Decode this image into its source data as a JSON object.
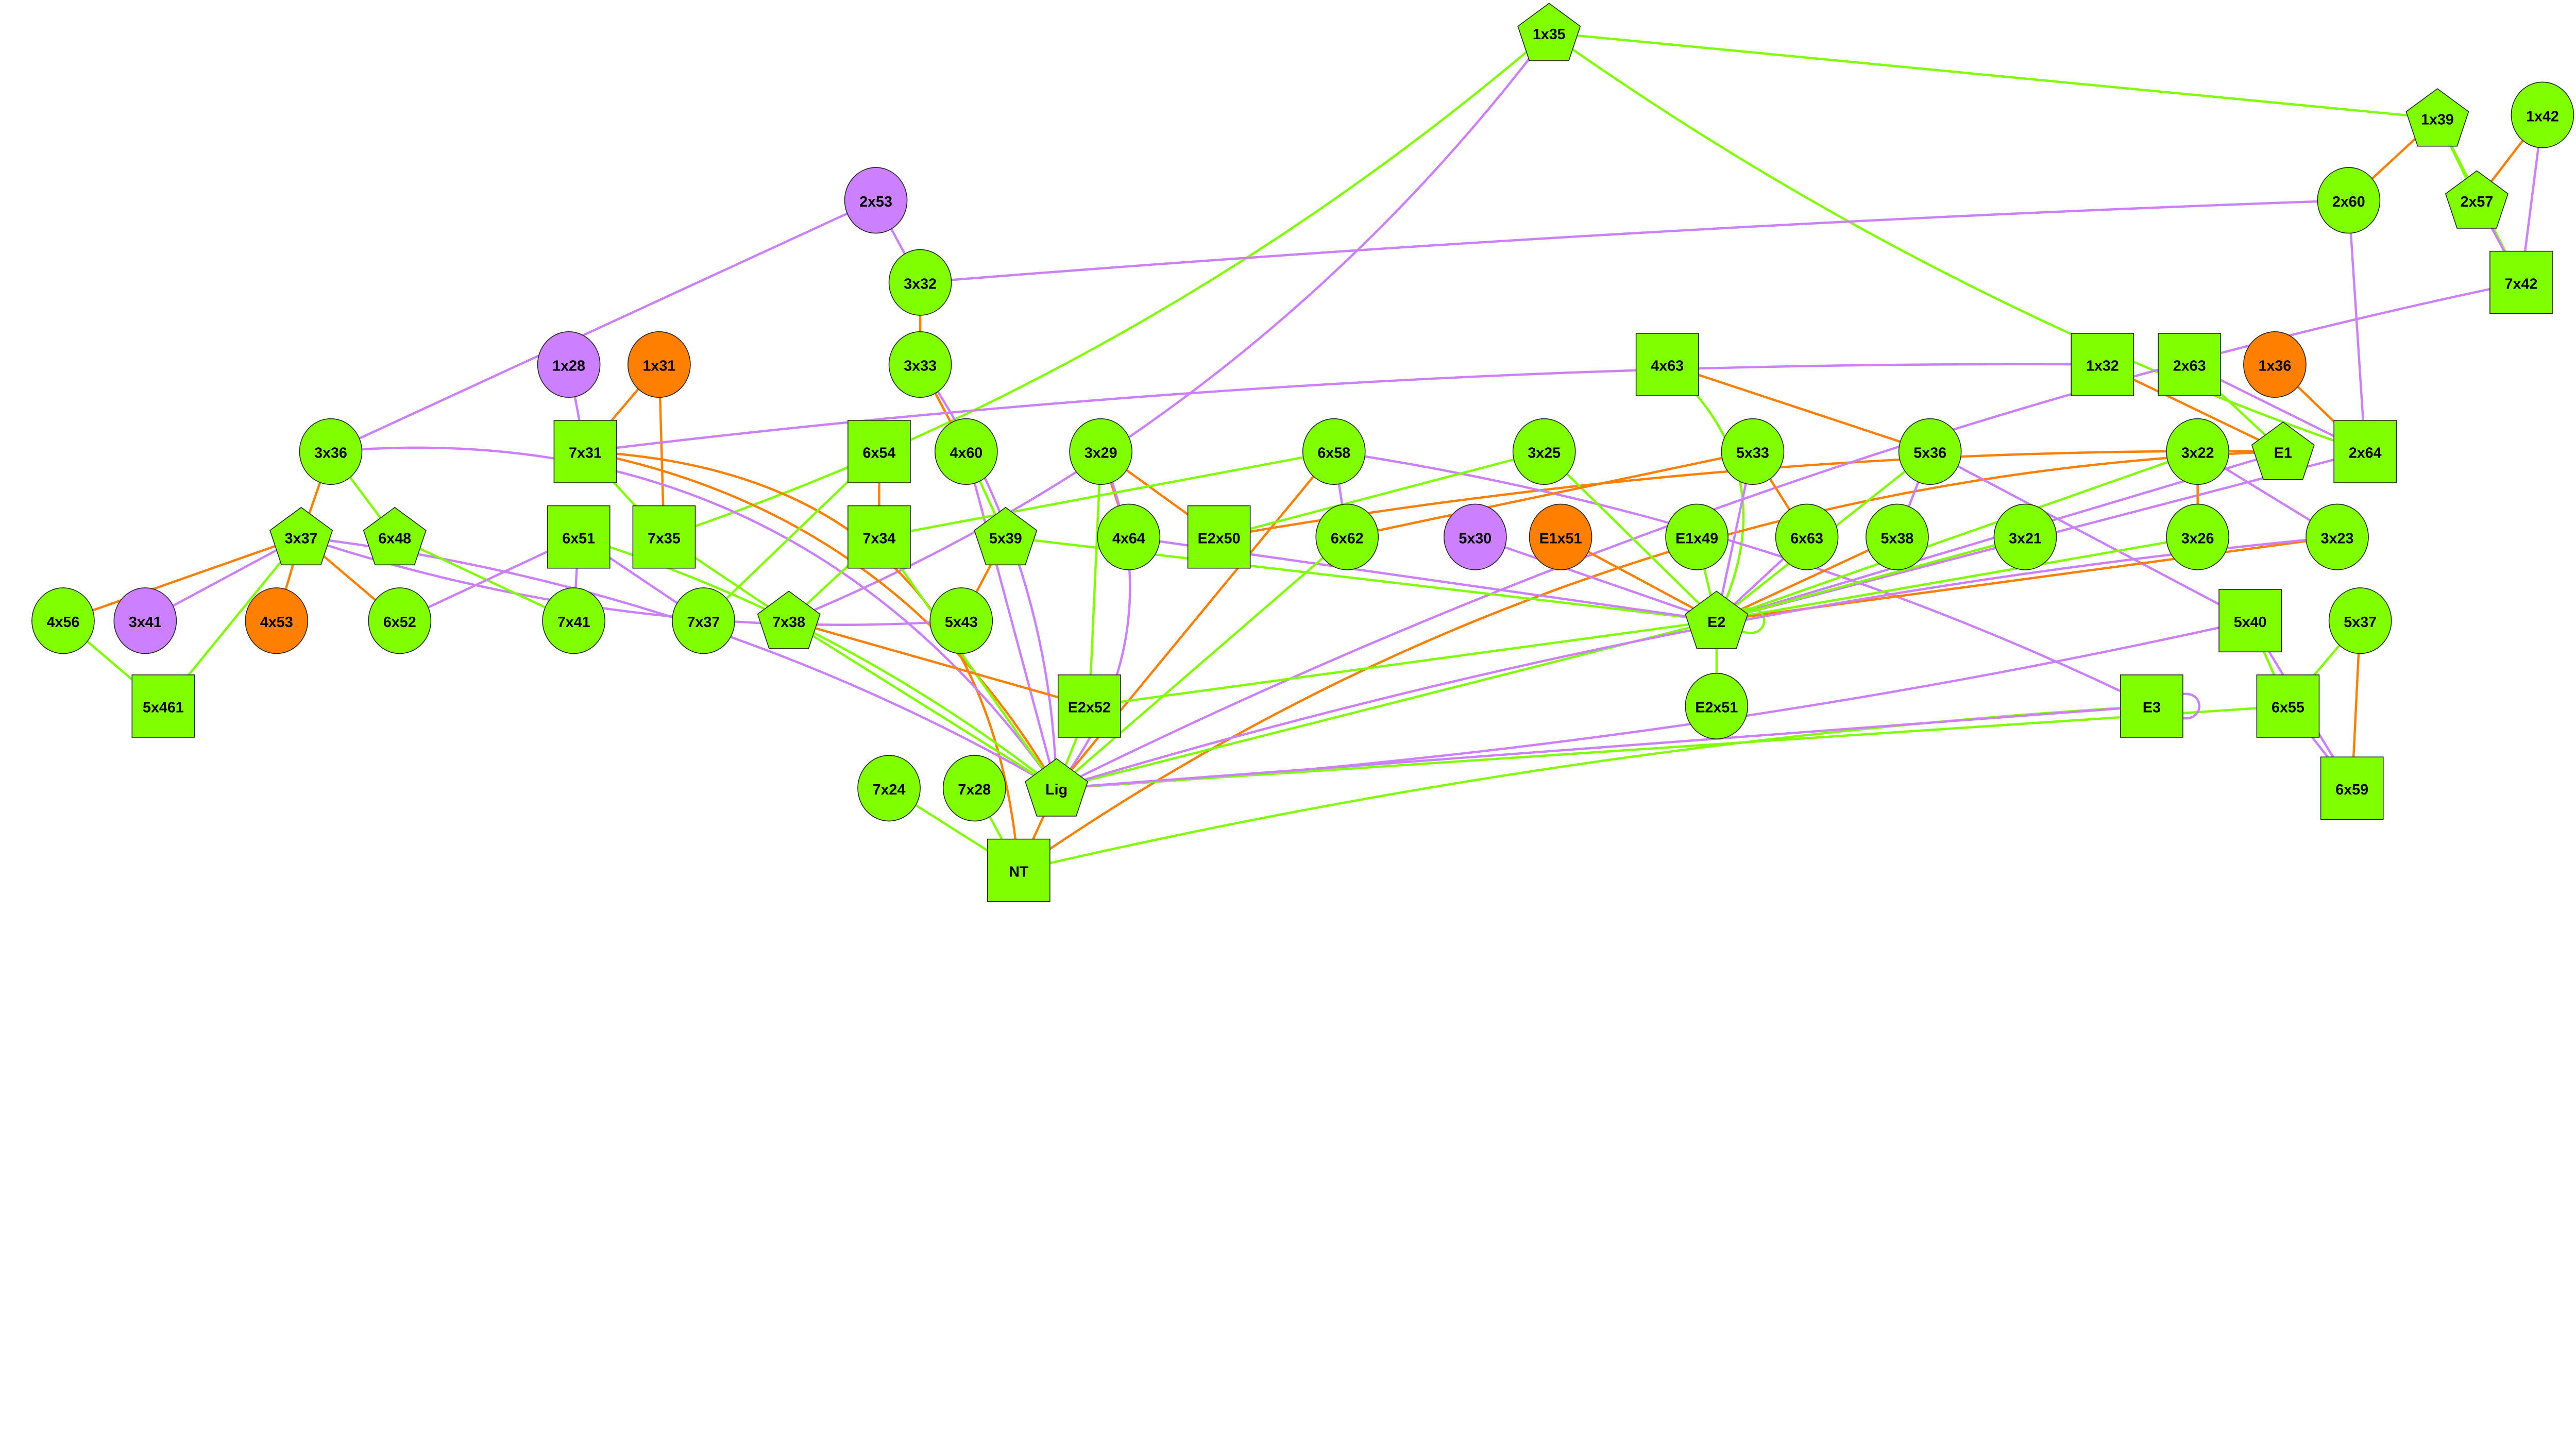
{
  "colors": {
    "green": "#7fff00",
    "purple": "#cc80ff",
    "orange": "#ff7f00"
  },
  "nodes": [
    {
      "id": "1x35",
      "shape": "pentagon",
      "color": "green"
    },
    {
      "id": "1x39",
      "shape": "pentagon",
      "color": "green"
    },
    {
      "id": "1x42",
      "shape": "circle",
      "color": "green"
    },
    {
      "id": "2x57",
      "shape": "pentagon",
      "color": "green"
    },
    {
      "id": "2x60",
      "shape": "circle",
      "color": "green"
    },
    {
      "id": "7x42",
      "shape": "box",
      "color": "green"
    },
    {
      "id": "2x53",
      "shape": "circle",
      "color": "purple"
    },
    {
      "id": "3x32",
      "shape": "circle",
      "color": "green"
    },
    {
      "id": "3x33",
      "shape": "circle",
      "color": "green"
    },
    {
      "id": "1x28",
      "shape": "circle",
      "color": "purple"
    },
    {
      "id": "1x31",
      "shape": "circle",
      "color": "orange"
    },
    {
      "id": "4x63",
      "shape": "box",
      "color": "green"
    },
    {
      "id": "1x32",
      "shape": "box",
      "color": "green"
    },
    {
      "id": "2x63",
      "shape": "box",
      "color": "green"
    },
    {
      "id": "1x36",
      "shape": "circle",
      "color": "orange"
    },
    {
      "id": "3x36",
      "shape": "circle",
      "color": "green"
    },
    {
      "id": "7x31",
      "shape": "box",
      "color": "green"
    },
    {
      "id": "6x54",
      "shape": "box",
      "color": "green"
    },
    {
      "id": "4x60",
      "shape": "circle",
      "color": "green"
    },
    {
      "id": "3x29",
      "shape": "circle",
      "color": "green"
    },
    {
      "id": "6x58",
      "shape": "circle",
      "color": "green"
    },
    {
      "id": "3x25",
      "shape": "circle",
      "color": "green"
    },
    {
      "id": "5x33",
      "shape": "circle",
      "color": "green"
    },
    {
      "id": "5x36",
      "shape": "circle",
      "color": "green"
    },
    {
      "id": "3x22",
      "shape": "circle",
      "color": "green"
    },
    {
      "id": "E1",
      "shape": "pentagon",
      "color": "green"
    },
    {
      "id": "2x64",
      "shape": "box",
      "color": "green"
    },
    {
      "id": "3x37",
      "shape": "pentagon",
      "color": "green"
    },
    {
      "id": "6x48",
      "shape": "pentagon",
      "color": "green"
    },
    {
      "id": "6x51",
      "shape": "box",
      "color": "green"
    },
    {
      "id": "7x35",
      "shape": "box",
      "color": "green"
    },
    {
      "id": "7x34",
      "shape": "box",
      "color": "green"
    },
    {
      "id": "5x39",
      "shape": "pentagon",
      "color": "green"
    },
    {
      "id": "4x64",
      "shape": "circle",
      "color": "green"
    },
    {
      "id": "E2x50",
      "shape": "box",
      "color": "green"
    },
    {
      "id": "6x62",
      "shape": "circle",
      "color": "green"
    },
    {
      "id": "5x30",
      "shape": "circle",
      "color": "purple"
    },
    {
      "id": "E1x51",
      "shape": "circle",
      "color": "orange"
    },
    {
      "id": "E1x49",
      "shape": "circle",
      "color": "green"
    },
    {
      "id": "6x63",
      "shape": "circle",
      "color": "green"
    },
    {
      "id": "5x38",
      "shape": "circle",
      "color": "green"
    },
    {
      "id": "3x21",
      "shape": "circle",
      "color": "green"
    },
    {
      "id": "3x26",
      "shape": "circle",
      "color": "green"
    },
    {
      "id": "3x23",
      "shape": "circle",
      "color": "green"
    },
    {
      "id": "4x56",
      "shape": "circle",
      "color": "green"
    },
    {
      "id": "3x41",
      "shape": "circle",
      "color": "purple"
    },
    {
      "id": "4x53",
      "shape": "circle",
      "color": "orange"
    },
    {
      "id": "6x52",
      "shape": "circle",
      "color": "green"
    },
    {
      "id": "7x41",
      "shape": "circle",
      "color": "green"
    },
    {
      "id": "7x37",
      "shape": "circle",
      "color": "green"
    },
    {
      "id": "7x38",
      "shape": "pentagon",
      "color": "green"
    },
    {
      "id": "5x43",
      "shape": "circle",
      "color": "green"
    },
    {
      "id": "E2",
      "shape": "pentagon",
      "color": "green"
    },
    {
      "id": "5x40",
      "shape": "box",
      "color": "green"
    },
    {
      "id": "5x37",
      "shape": "circle",
      "color": "green"
    },
    {
      "id": "5x461",
      "shape": "box",
      "color": "green"
    },
    {
      "id": "E2x52",
      "shape": "box",
      "color": "green"
    },
    {
      "id": "E2x51",
      "shape": "circle",
      "color": "green"
    },
    {
      "id": "E3",
      "shape": "box",
      "color": "green"
    },
    {
      "id": "6x55",
      "shape": "box",
      "color": "green"
    },
    {
      "id": "7x24",
      "shape": "circle",
      "color": "green"
    },
    {
      "id": "7x28",
      "shape": "circle",
      "color": "green"
    },
    {
      "id": "Lig",
      "shape": "pentagon",
      "color": "green"
    },
    {
      "id": "6x59",
      "shape": "box",
      "color": "green"
    },
    {
      "id": "NT",
      "shape": "box",
      "color": "green"
    }
  ],
  "edges": [
    [
      "1x35",
      "7x35",
      "green"
    ],
    [
      "1x35",
      "7x38",
      "purple"
    ],
    [
      "1x35",
      "1x39",
      "green"
    ],
    [
      "1x35",
      "2x64",
      "green"
    ],
    [
      "1x39",
      "2x60",
      "orange"
    ],
    [
      "1x39",
      "2x57",
      "green"
    ],
    [
      "1x39",
      "7x42",
      "green"
    ],
    [
      "1x42",
      "2x57",
      "orange"
    ],
    [
      "1x42",
      "7x42",
      "purple"
    ],
    [
      "2x57",
      "7x42",
      "purple"
    ],
    [
      "2x60",
      "3x32",
      "purple"
    ],
    [
      "2x60",
      "2x64",
      "purple"
    ],
    [
      "2x53",
      "3x32",
      "purple"
    ],
    [
      "2x53",
      "3x36",
      "purple"
    ],
    [
      "3x32",
      "3x33",
      "orange"
    ],
    [
      "3x33",
      "4x60",
      "orange"
    ],
    [
      "3x33",
      "Lig",
      "purple"
    ],
    [
      "1x28",
      "7x31",
      "purple"
    ],
    [
      "1x31",
      "7x31",
      "orange"
    ],
    [
      "1x31",
      "7x35",
      "orange"
    ],
    [
      "7x31",
      "1x32",
      "purple"
    ],
    [
      "7x31",
      "7x35",
      "green"
    ],
    [
      "7x31",
      "NT",
      "orange"
    ],
    [
      "7x31",
      "Lig",
      "orange"
    ],
    [
      "3x36",
      "3x37",
      "orange"
    ],
    [
      "3x36",
      "6x48",
      "green"
    ],
    [
      "3x36",
      "Lig",
      "purple"
    ],
    [
      "4x63",
      "E2",
      "green"
    ],
    [
      "4x63",
      "5x36",
      "orange"
    ],
    [
      "E2x50",
      "E1",
      "orange"
    ],
    [
      "1x32",
      "E1",
      "orange"
    ],
    [
      "2x63",
      "2x64",
      "purple"
    ],
    [
      "2x63",
      "E1",
      "green"
    ],
    [
      "1x36",
      "2x64",
      "orange"
    ],
    [
      "E1",
      "NT",
      "orange"
    ],
    [
      "E1",
      "E2",
      "purple"
    ],
    [
      "2x64",
      "E2",
      "purple"
    ],
    [
      "7x42",
      "Lig",
      "purple"
    ],
    [
      "6x54",
      "7x34",
      "orange"
    ],
    [
      "6x54",
      "7x37",
      "green"
    ],
    [
      "4x60",
      "5x39",
      "green"
    ],
    [
      "4x60",
      "Lig",
      "purple"
    ],
    [
      "3x29",
      "4x64",
      "orange"
    ],
    [
      "3x29",
      "E2x50",
      "orange"
    ],
    [
      "3x29",
      "E2x52",
      "green"
    ],
    [
      "3x29",
      "Lig",
      "purple"
    ],
    [
      "6x58",
      "6x62",
      "purple"
    ],
    [
      "6x58",
      "Lig",
      "orange"
    ],
    [
      "6x58",
      "7x34",
      "green"
    ],
    [
      "6x58",
      "E3",
      "purple"
    ],
    [
      "3x25",
      "E2x50",
      "green"
    ],
    [
      "3x25",
      "E2",
      "green"
    ],
    [
      "5x33",
      "6x62",
      "orange"
    ],
    [
      "5x33",
      "6x63",
      "orange"
    ],
    [
      "5x33",
      "E2",
      "purple"
    ],
    [
      "5x36",
      "5x38",
      "purple"
    ],
    [
      "5x36",
      "E2",
      "green"
    ],
    [
      "5x36",
      "5x40",
      "purple"
    ],
    [
      "3x22",
      "3x26",
      "orange"
    ],
    [
      "3x22",
      "3x23",
      "purple"
    ],
    [
      "3x22",
      "E2",
      "green"
    ],
    [
      "3x37",
      "4x56",
      "orange"
    ],
    [
      "3x37",
      "3x41",
      "purple"
    ],
    [
      "3x37",
      "4x53",
      "orange"
    ],
    [
      "3x37",
      "6x52",
      "orange"
    ],
    [
      "3x37",
      "5x461",
      "green"
    ],
    [
      "3x37",
      "5x43",
      "purple"
    ],
    [
      "3x37",
      "Lig",
      "purple"
    ],
    [
      "6x48",
      "7x41",
      "green"
    ],
    [
      "6x51",
      "6x52",
      "purple"
    ],
    [
      "6x51",
      "7x41",
      "purple"
    ],
    [
      "6x51",
      "7x37",
      "purple"
    ],
    [
      "6x51",
      "Lig",
      "green"
    ],
    [
      "7x35",
      "7x38",
      "green"
    ],
    [
      "7x34",
      "7x38",
      "green"
    ],
    [
      "7x34",
      "Lig",
      "green"
    ],
    [
      "5x39",
      "5x43",
      "orange"
    ],
    [
      "5x39",
      "E2",
      "green"
    ],
    [
      "4x64",
      "E2",
      "purple"
    ],
    [
      "6x62",
      "Lig",
      "green"
    ],
    [
      "5x30",
      "E2",
      "purple"
    ],
    [
      "E1x51",
      "E2",
      "orange"
    ],
    [
      "E1x49",
      "E2",
      "green"
    ],
    [
      "6x63",
      "E2",
      "purple"
    ],
    [
      "5x38",
      "E2",
      "orange"
    ],
    [
      "3x21",
      "E2",
      "green"
    ],
    [
      "3x26",
      "E2",
      "green"
    ],
    [
      "3x23",
      "E2",
      "orange"
    ],
    [
      "E2",
      "E2",
      "green"
    ],
    [
      "E2",
      "E2x52",
      "green"
    ],
    [
      "E2",
      "E2x51",
      "green"
    ],
    [
      "E2",
      "Lig",
      "green"
    ],
    [
      "4x56",
      "5x461",
      "green"
    ],
    [
      "7x38",
      "E2x52",
      "orange"
    ],
    [
      "7x38",
      "Lig",
      "green"
    ],
    [
      "E2x52",
      "Lig",
      "green"
    ],
    [
      "3x23",
      "Lig",
      "purple"
    ],
    [
      "5x40",
      "6x55",
      "green"
    ],
    [
      "5x40",
      "6x59",
      "purple"
    ],
    [
      "5x40",
      "Lig",
      "purple"
    ],
    [
      "5x37",
      "6x55",
      "green"
    ],
    [
      "5x37",
      "6x59",
      "orange"
    ],
    [
      "6x55",
      "6x59",
      "purple"
    ],
    [
      "6x55",
      "Lig",
      "green"
    ],
    [
      "E3",
      "E3",
      "purple"
    ],
    [
      "E3",
      "NT",
      "green"
    ],
    [
      "E3",
      "Lig",
      "purple"
    ],
    [
      "7x24",
      "NT",
      "green"
    ],
    [
      "7x28",
      "NT",
      "green"
    ],
    [
      "Lig",
      "NT",
      "orange"
    ]
  ]
}
